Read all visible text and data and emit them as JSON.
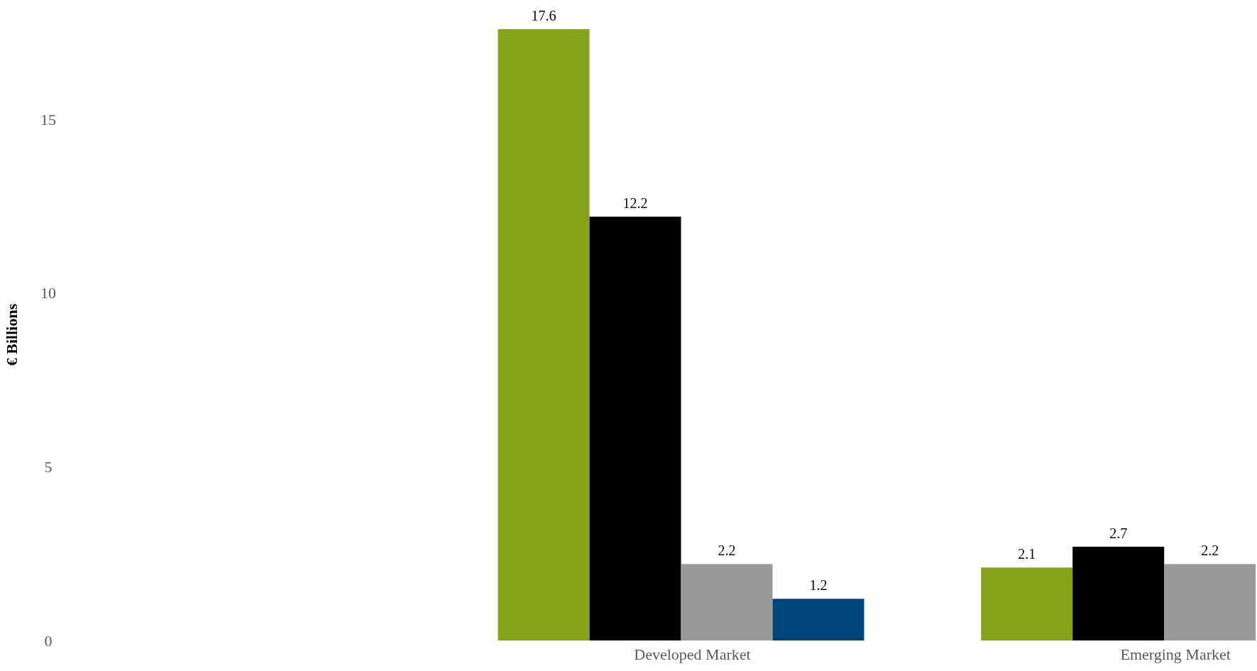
{
  "chart_data": {
    "type": "bar",
    "ylabel": "€ Billions",
    "categories": [
      null,
      "Developed Market",
      "Emerging Market"
    ],
    "series": [
      {
        "color": "#86a31a",
        "values": [
          null,
          17.6,
          2.1
        ]
      },
      {
        "color": "#000000",
        "values": [
          null,
          12.2,
          2.7
        ]
      },
      {
        "color": "#999999",
        "values": [
          null,
          2.2,
          2.2
        ]
      },
      {
        "color": "#00457a",
        "values": [
          null,
          1.2,
          null
        ]
      }
    ],
    "ylim": [
      0,
      17.6
    ],
    "yticks": [
      0,
      5,
      10,
      15
    ],
    "data_labels": true,
    "grid": false
  }
}
